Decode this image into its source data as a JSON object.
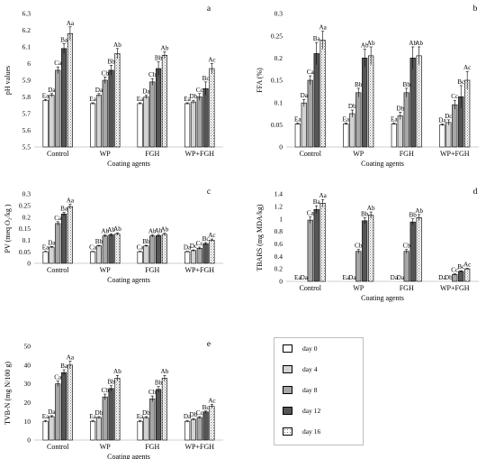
{
  "legend": {
    "items": [
      {
        "label": "day 0",
        "fill": "#ffffff"
      },
      {
        "label": "day 4",
        "fill": "#d3d3d3"
      },
      {
        "label": "day 8",
        "fill": "#a6a6a6"
      },
      {
        "label": "day 12",
        "fill": "#555555"
      },
      {
        "label": "day 16",
        "fill": "pattern"
      }
    ]
  },
  "chart_data": [
    {
      "type": "bar",
      "panel_letter": "a",
      "ylabel": "pH values",
      "xlabel": "Coating agents",
      "ylim": [
        5.5,
        6.3
      ],
      "yticks": [
        "5.5",
        "5.6",
        "5.7",
        "5.8",
        "5.9",
        "6",
        "6.1",
        "6.2",
        "6.3"
      ],
      "tick_values": [
        5.5,
        5.6,
        5.7,
        5.8,
        5.9,
        6.0,
        6.1,
        6.2,
        6.3
      ],
      "categories": [
        "Control",
        "WP",
        "FGH",
        "WP+FGH"
      ],
      "series": [
        {
          "name": "day 0",
          "values": [
            5.78,
            5.76,
            5.76,
            5.76
          ],
          "errors": [
            0.005,
            0.005,
            0.005,
            0.005
          ],
          "labels": [
            "Ea",
            "Ea",
            "Ea",
            "Ea"
          ]
        },
        {
          "name": "day 4",
          "values": [
            5.81,
            5.81,
            5.8,
            5.77
          ],
          "errors": [
            0.01,
            0.01,
            0.01,
            0.01
          ],
          "labels": [
            "Da",
            "Da",
            "Da",
            "Db"
          ]
        },
        {
          "name": "day 8",
          "values": [
            5.96,
            5.9,
            5.89,
            5.8
          ],
          "errors": [
            0.02,
            0.02,
            0.02,
            0.02
          ],
          "labels": [
            "Ca",
            "Cb",
            "Cb",
            "Cc"
          ]
        },
        {
          "name": "day 12",
          "values": [
            6.09,
            5.96,
            5.97,
            5.85
          ],
          "errors": [
            0.03,
            0.03,
            0.04,
            0.04
          ],
          "labels": [
            "Ba",
            "Bb",
            "Bb",
            "Bc"
          ]
        },
        {
          "name": "day 16",
          "values": [
            6.18,
            6.06,
            6.05,
            5.97
          ],
          "errors": [
            0.04,
            0.03,
            0.02,
            0.03
          ],
          "labels": [
            "Aa",
            "Ab",
            "Ab",
            "Ac"
          ]
        }
      ]
    },
    {
      "type": "bar",
      "panel_letter": "b",
      "ylabel": "FFA (%)",
      "xlabel": "Coating agents",
      "ylim": [
        0,
        0.3
      ],
      "yticks": [
        "0",
        "0.05",
        "0.1",
        "0.15",
        "0.2",
        "0.25",
        "0.3"
      ],
      "tick_values": [
        0,
        0.05,
        0.1,
        0.15,
        0.2,
        0.25,
        0.3
      ],
      "categories": [
        "Control",
        "WP",
        "FGH",
        "WP+FGH"
      ],
      "series": [
        {
          "name": "day 0",
          "values": [
            0.052,
            0.052,
            0.052,
            0.05
          ],
          "errors": [
            0.002,
            0.002,
            0.002,
            0.002
          ],
          "labels": [
            "Ea",
            "Ea",
            "Ea",
            "Da"
          ]
        },
        {
          "name": "day 4",
          "values": [
            0.099,
            0.075,
            0.07,
            0.055
          ],
          "errors": [
            0.008,
            0.008,
            0.008,
            0.006
          ],
          "labels": [
            "Da",
            "Db",
            "Db",
            "Dc"
          ]
        },
        {
          "name": "day 8",
          "values": [
            0.15,
            0.122,
            0.122,
            0.095
          ],
          "errors": [
            0.01,
            0.01,
            0.01,
            0.01
          ],
          "labels": [
            "Ca",
            "Bb",
            "Bb",
            "Cc"
          ]
        },
        {
          "name": "day 12",
          "values": [
            0.21,
            0.2,
            0.2,
            0.113
          ],
          "errors": [
            0.025,
            0.02,
            0.025,
            0.025
          ],
          "labels": [
            "Ba",
            "Ab",
            "Ab",
            "Bc"
          ]
        },
        {
          "name": "day 16",
          "values": [
            0.24,
            0.205,
            0.205,
            0.15
          ],
          "errors": [
            0.02,
            0.02,
            0.02,
            0.02
          ],
          "labels": [
            "Aa",
            "Ab",
            "Ab",
            "Ac"
          ]
        }
      ]
    },
    {
      "type": "bar",
      "panel_letter": "c",
      "ylabel": "PV (meq O₂/kg )",
      "xlabel": "Coating agents",
      "ylim": [
        0,
        0.3
      ],
      "yticks": [
        "0",
        "0.05",
        "0.1",
        "0.15",
        "0.2",
        "0.25",
        "0.3"
      ],
      "tick_values": [
        0,
        0.05,
        0.1,
        0.15,
        0.2,
        0.25,
        0.3
      ],
      "categories": [
        "Control",
        "WP",
        "FGH",
        "WP+FGH"
      ],
      "series": [
        {
          "name": "day 0",
          "values": [
            0.05,
            0.05,
            0.05,
            0.05
          ],
          "errors": [
            0.002,
            0.002,
            0.002,
            0.002
          ],
          "labels": [
            "Ea",
            "Ca",
            "Ca",
            "Da"
          ]
        },
        {
          "name": "day 4",
          "values": [
            0.07,
            0.075,
            0.075,
            0.055
          ],
          "errors": [
            0.003,
            0.003,
            0.003,
            0.003
          ],
          "labels": [
            "Da",
            "Bb",
            "Bb",
            "Dc"
          ]
        },
        {
          "name": "day 8",
          "values": [
            0.172,
            0.118,
            0.118,
            0.065
          ],
          "errors": [
            0.008,
            0.005,
            0.005,
            0.005
          ],
          "labels": [
            "Ca",
            "Ab",
            "Ab",
            "Cc"
          ]
        },
        {
          "name": "day 12",
          "values": [
            0.213,
            0.123,
            0.12,
            0.085
          ],
          "errors": [
            0.008,
            0.005,
            0.005,
            0.005
          ],
          "labels": [
            "Ba",
            "Ab",
            "Ab",
            "Bc"
          ]
        },
        {
          "name": "day 16",
          "values": [
            0.245,
            0.127,
            0.125,
            0.1
          ],
          "errors": [
            0.01,
            0.005,
            0.005,
            0.005
          ],
          "labels": [
            "Aa",
            "Ab",
            "Ab",
            "Ac"
          ]
        }
      ]
    },
    {
      "type": "bar",
      "panel_letter": "d",
      "ylabel": "TBARS (mg MDA/kg)",
      "xlabel": "Coating agents",
      "ylim": [
        0,
        1.4
      ],
      "yticks": [
        "0",
        "0.2",
        "0.4",
        "0.6",
        "0.8",
        "1",
        "1.2",
        "1.4"
      ],
      "tick_values": [
        0,
        0.2,
        0.4,
        0.6,
        0.8,
        1.0,
        1.2,
        1.4
      ],
      "categories": [
        "Control",
        "WP",
        "FGH",
        "WP+FGH"
      ],
      "series": [
        {
          "name": "day 0",
          "values": [
            0.0,
            0.0,
            0.0,
            0.0
          ],
          "errors": [
            0,
            0,
            0,
            0
          ],
          "labels": [
            "Ea",
            "Ea",
            "Da",
            "Da"
          ]
        },
        {
          "name": "day 4",
          "values": [
            0.0,
            0.0,
            0.0,
            0.0
          ],
          "errors": [
            0,
            0,
            0,
            0
          ],
          "labels": [
            "Da",
            "Da",
            "Da",
            "Db"
          ]
        },
        {
          "name": "day 8",
          "values": [
            0.98,
            0.48,
            0.48,
            0.11
          ],
          "errors": [
            0.05,
            0.03,
            0.03,
            0.01
          ],
          "labels": [
            "Ca",
            "Cb",
            "Cb",
            "Cc"
          ]
        },
        {
          "name": "day 12",
          "values": [
            1.15,
            0.97,
            0.95,
            0.16
          ],
          "errors": [
            0.06,
            0.05,
            0.05,
            0.01
          ],
          "labels": [
            "Ba",
            "Bb",
            "Bb",
            "Bc"
          ]
        },
        {
          "name": "day 16",
          "values": [
            1.25,
            1.06,
            1.02,
            0.2
          ],
          "errors": [
            0.06,
            0.05,
            0.05,
            0.01
          ],
          "labels": [
            "Aa",
            "Ab",
            "Ab",
            "Ac"
          ]
        }
      ]
    },
    {
      "type": "bar",
      "panel_letter": "e",
      "ylabel": "TVB-N (mg N/100 g)",
      "xlabel": "Coating agents",
      "ylim": [
        0,
        50
      ],
      "yticks": [
        "0",
        "10",
        "20",
        "30",
        "40",
        "50"
      ],
      "tick_values": [
        0,
        10,
        20,
        30,
        40,
        50
      ],
      "categories": [
        "Control",
        "WP",
        "FGH",
        "WP+FGH"
      ],
      "series": [
        {
          "name": "day 0",
          "values": [
            10.0,
            10.0,
            10.0,
            10.0
          ],
          "errors": [
            0.5,
            0.5,
            0.5,
            0.5
          ],
          "labels": [
            "Ea",
            "Ea",
            "Ea",
            "Da"
          ]
        },
        {
          "name": "day 4",
          "values": [
            12.5,
            12.0,
            12.0,
            11.0
          ],
          "errors": [
            0.5,
            0.5,
            0.5,
            0.5
          ],
          "labels": [
            "Da",
            "Db",
            "Db",
            "Db"
          ]
        },
        {
          "name": "day 8",
          "values": [
            30.0,
            23.0,
            22.0,
            12.0
          ],
          "errors": [
            1.5,
            1.5,
            1.5,
            0.5
          ],
          "labels": [
            "Ca",
            "Cb",
            "Cb",
            "Cc"
          ]
        },
        {
          "name": "day 12",
          "values": [
            36.0,
            27.5,
            27.0,
            15.0
          ],
          "errors": [
            1.5,
            1.5,
            1.5,
            0.5
          ],
          "labels": [
            "Ba",
            "Bb",
            "Bb",
            "Bc"
          ]
        },
        {
          "name": "day 16",
          "values": [
            40.0,
            33.0,
            33.0,
            18.0
          ],
          "errors": [
            2.0,
            1.5,
            1.5,
            1.0
          ],
          "labels": [
            "Aa",
            "Ab",
            "Ab",
            "Ac"
          ]
        }
      ]
    }
  ]
}
